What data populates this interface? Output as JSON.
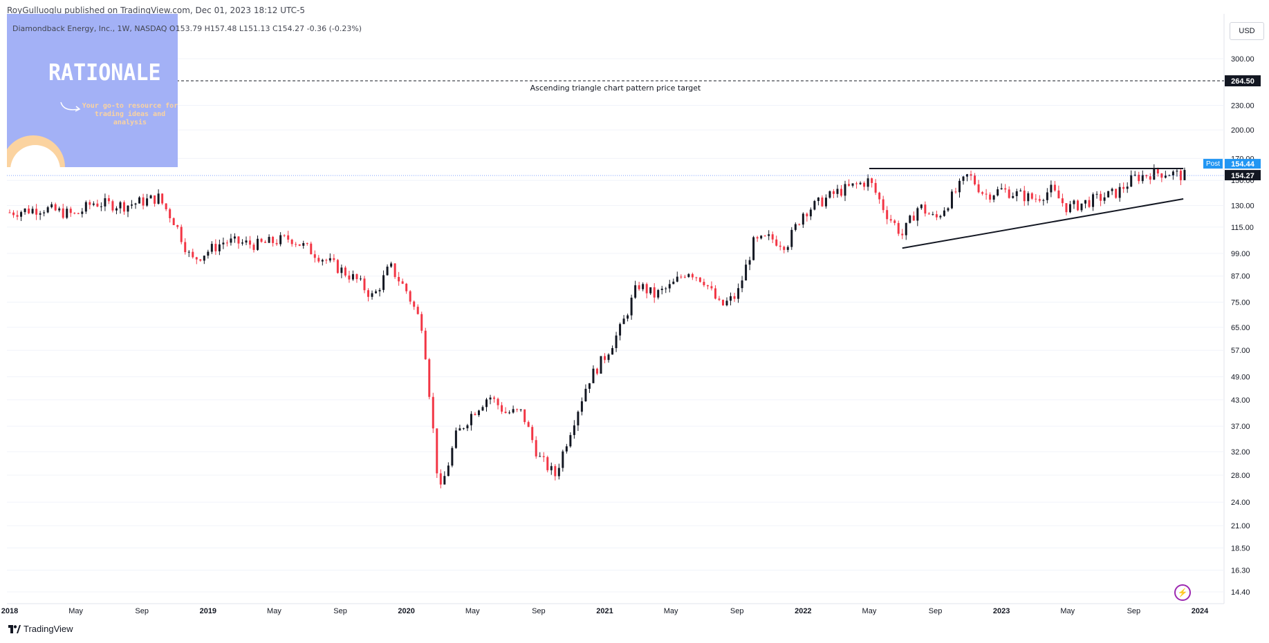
{
  "header": {
    "published": "RoyGulluoglu published on TradingView.com,  Dec 01, 2023 18:12 UTC-5",
    "symbol_line": "Diamondback Energy, Inc., 1W, NASDAQ  O153.79  H157.48  L151.13  C154.27  -0.36 (-0.23%)"
  },
  "overlay": {
    "title": "RATIONALE",
    "subtitle": "Your go-to resource for trading ideas and analysis",
    "background_color": "#a3b1f6",
    "accent_color": "#fbd3a0"
  },
  "price_scale": {
    "currency": "USD"
  },
  "branding": {
    "logo_text": "TradingView",
    "icon": "tradingview-logo-icon",
    "bolt_icon": "lightning-icon"
  },
  "chart_data": {
    "type": "candlestick",
    "scale": "log",
    "title": "",
    "x_range": [
      "2018-01",
      "2024-02"
    ],
    "y_range": [
      14.4,
      330
    ],
    "y_ticks": [
      14.4,
      16.3,
      18.5,
      21.0,
      24.0,
      28.0,
      32.0,
      37.0,
      43.0,
      49.0,
      57.0,
      65.0,
      75.0,
      87.0,
      99.0,
      115.0,
      130.0,
      150.0,
      170.0,
      200.0,
      230.0,
      300.0
    ],
    "y_tick_labels": [
      "14.40",
      "16.30",
      "18.50",
      "21.00",
      "24.00",
      "28.00",
      "32.00",
      "37.00",
      "43.00",
      "49.00",
      "57.00",
      "65.00",
      "75.00",
      "87.00",
      "99.00",
      "115.00",
      "130.00",
      "150.00",
      "170.00",
      "200.00",
      "230.00",
      "300.00"
    ],
    "x_ticks": [
      {
        "label": "2018",
        "date": "2018-01",
        "bold": true
      },
      {
        "label": "May",
        "date": "2018-05",
        "bold": false
      },
      {
        "label": "Sep",
        "date": "2018-09",
        "bold": false
      },
      {
        "label": "2019",
        "date": "2019-01",
        "bold": true
      },
      {
        "label": "May",
        "date": "2019-05",
        "bold": false
      },
      {
        "label": "Sep",
        "date": "2019-09",
        "bold": false
      },
      {
        "label": "2020",
        "date": "2020-01",
        "bold": true
      },
      {
        "label": "May",
        "date": "2020-05",
        "bold": false
      },
      {
        "label": "Sep",
        "date": "2020-09",
        "bold": false
      },
      {
        "label": "2021",
        "date": "2021-01",
        "bold": true
      },
      {
        "label": "May",
        "date": "2021-05",
        "bold": false
      },
      {
        "label": "Sep",
        "date": "2021-09",
        "bold": false
      },
      {
        "label": "2022",
        "date": "2022-01",
        "bold": true
      },
      {
        "label": "May",
        "date": "2022-05",
        "bold": false
      },
      {
        "label": "Sep",
        "date": "2022-09",
        "bold": false
      },
      {
        "label": "2023",
        "date": "2023-01",
        "bold": true
      },
      {
        "label": "May",
        "date": "2023-05",
        "bold": false
      },
      {
        "label": "Sep",
        "date": "2023-09",
        "bold": false
      },
      {
        "label": "2024",
        "date": "2024-01",
        "bold": true
      }
    ],
    "colors": {
      "up": "#131722",
      "down": "#f23645",
      "grid": "#f0f3fa"
    },
    "price_path": [
      [
        "2018-01",
        125
      ],
      [
        "2018-03",
        128
      ],
      [
        "2018-05",
        123
      ],
      [
        "2018-06",
        132
      ],
      [
        "2018-08",
        130
      ],
      [
        "2018-10",
        136
      ],
      [
        "2018-11",
        118
      ],
      [
        "2018-12",
        95
      ],
      [
        "2019-02",
        106
      ],
      [
        "2019-04",
        104
      ],
      [
        "2019-06",
        108
      ],
      [
        "2019-08",
        96
      ],
      [
        "2019-10",
        85
      ],
      [
        "2019-11",
        77
      ],
      [
        "2019-12",
        92
      ],
      [
        "2020-01",
        80
      ],
      [
        "2020-02",
        65
      ],
      [
        "2020-03",
        25
      ],
      [
        "2020-04",
        35
      ],
      [
        "2020-05",
        40
      ],
      [
        "2020-06",
        44
      ],
      [
        "2020-07",
        40
      ],
      [
        "2020-08",
        40
      ],
      [
        "2020-09",
        31
      ],
      [
        "2020-10",
        28
      ],
      [
        "2020-11",
        37
      ],
      [
        "2020-12",
        48
      ],
      [
        "2021-01",
        55
      ],
      [
        "2021-02",
        65
      ],
      [
        "2021-03",
        83
      ],
      [
        "2021-04",
        78
      ],
      [
        "2021-05",
        82
      ],
      [
        "2021-06",
        90
      ],
      [
        "2021-07",
        85
      ],
      [
        "2021-08",
        73
      ],
      [
        "2021-09",
        78
      ],
      [
        "2021-10",
        105
      ],
      [
        "2021-11",
        108
      ],
      [
        "2021-12",
        104
      ],
      [
        "2022-01",
        125
      ],
      [
        "2022-03",
        140
      ],
      [
        "2022-05",
        150
      ],
      [
        "2022-06",
        125
      ],
      [
        "2022-07",
        110
      ],
      [
        "2022-08",
        130
      ],
      [
        "2022-09",
        120
      ],
      [
        "2022-11",
        155
      ],
      [
        "2022-12",
        138
      ],
      [
        "2023-01",
        142
      ],
      [
        "2023-03",
        135
      ],
      [
        "2023-04",
        142
      ],
      [
        "2023-05",
        128
      ],
      [
        "2023-06",
        132
      ],
      [
        "2023-08",
        140
      ],
      [
        "2023-09",
        152
      ],
      [
        "2023-10",
        156
      ],
      [
        "2023-11",
        157
      ],
      [
        "2023-12",
        154
      ]
    ],
    "annotations": {
      "target_label": "Ascending triangle chart pattern price target",
      "target_price": 264.5,
      "target_price_label": "264.50",
      "resistance": {
        "from": "2022-05",
        "to": "2023-12",
        "price": 160.5
      },
      "support": {
        "from": "2022-07",
        "to": "2023-12",
        "start_price": 102,
        "end_price": 135
      },
      "post_label": "Post",
      "post_price_label": "154.44",
      "last_price_label": "154.27",
      "last_price": 154.27
    }
  }
}
